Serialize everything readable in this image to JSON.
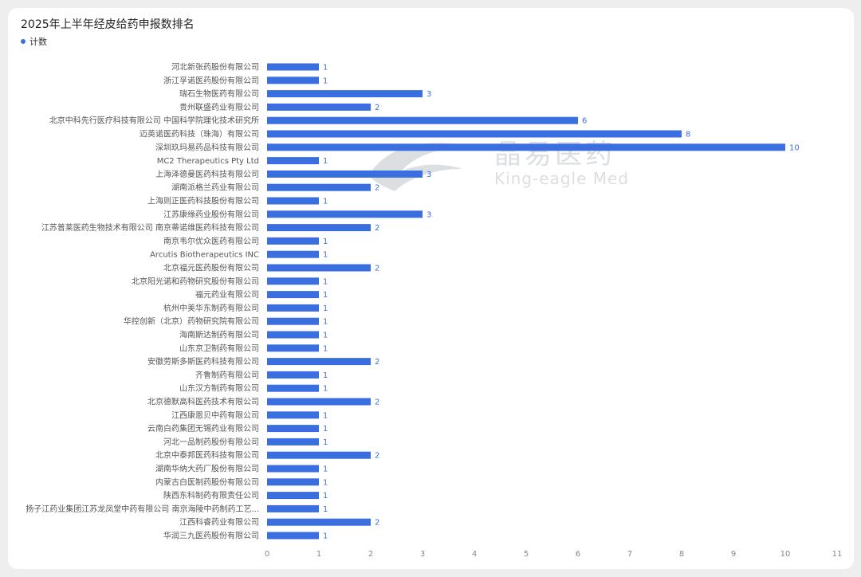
{
  "title": "2025年上半年经皮给药申报数排名",
  "legend": {
    "label": "计数"
  },
  "watermark": {
    "cn": "晶易医药",
    "en": "King-eagle Med"
  },
  "colors": {
    "bar": "#3b6fe0",
    "value_text": "#3b6fe0"
  },
  "chart_data": {
    "type": "bar",
    "orientation": "horizontal",
    "title": "2025年上半年经皮给药申报数排名",
    "xlabel": "",
    "ylabel": "",
    "xlim": [
      0,
      11
    ],
    "xticks": [
      0,
      1,
      2,
      3,
      4,
      5,
      6,
      7,
      8,
      9,
      10,
      11
    ],
    "grid": false,
    "legend_position": "top-left",
    "categories": [
      "河北新张药股份有限公司",
      "浙江孚诺医药股份有限公司",
      "瑞石生物医药有限公司",
      "贵州联盛药业有限公司",
      "北京中科先行医疗科技有限公司 中国科学院理化技术研究所",
      "迈英诺医药科技（珠海）有限公司",
      "深圳玖玛易药品科技有限公司",
      "MC2 Therapeutics Pty Ltd",
      "上海泽德曼医药科技有限公司",
      "湖南派格兰药业有限公司",
      "上海则正医药科技股份有限公司",
      "江苏康缘药业股份有限公司",
      "江苏普莱医药生物技术有限公司 南京蒂诺维医药科技有限公司",
      "南京韦尔优众医药有限公司",
      "Arcutis Biotherapeutics INC",
      "北京福元医药股份有限公司",
      "北京阳光诺和药物研究股份有限公司",
      "福元药业有限公司",
      "杭州中美华东制药有限公司",
      "华控创新（北京）药物研究院有限公司",
      "海南斯达制药有限公司",
      "山东京卫制药有限公司",
      "安徽劳斯多斯医药科技有限公司",
      "齐鲁制药有限公司",
      "山东汉方制药有限公司",
      "北京德默高科医药技术有限公司",
      "江西康恩贝中药有限公司",
      "云南白药集团无锡药业有限公司",
      "河北一品制药股份有限公司",
      "北京中泰邦医药科技有限公司",
      "湖南华纳大药厂股份有限公司",
      "内蒙古白医制药股份有限公司",
      "陕西东科制药有限责任公司",
      "扬子江药业集团江苏龙凤堂中药有限公司 南京海陵中药制药工艺...",
      "江西科睿药业有限公司",
      "华润三九医药股份有限公司"
    ],
    "series": [
      {
        "name": "计数",
        "values": [
          1,
          1,
          3,
          2,
          6,
          8,
          10,
          1,
          3,
          2,
          1,
          3,
          2,
          1,
          1,
          2,
          1,
          1,
          1,
          1,
          1,
          1,
          2,
          1,
          1,
          2,
          1,
          1,
          1,
          2,
          1,
          1,
          1,
          1,
          2,
          1
        ]
      }
    ]
  }
}
